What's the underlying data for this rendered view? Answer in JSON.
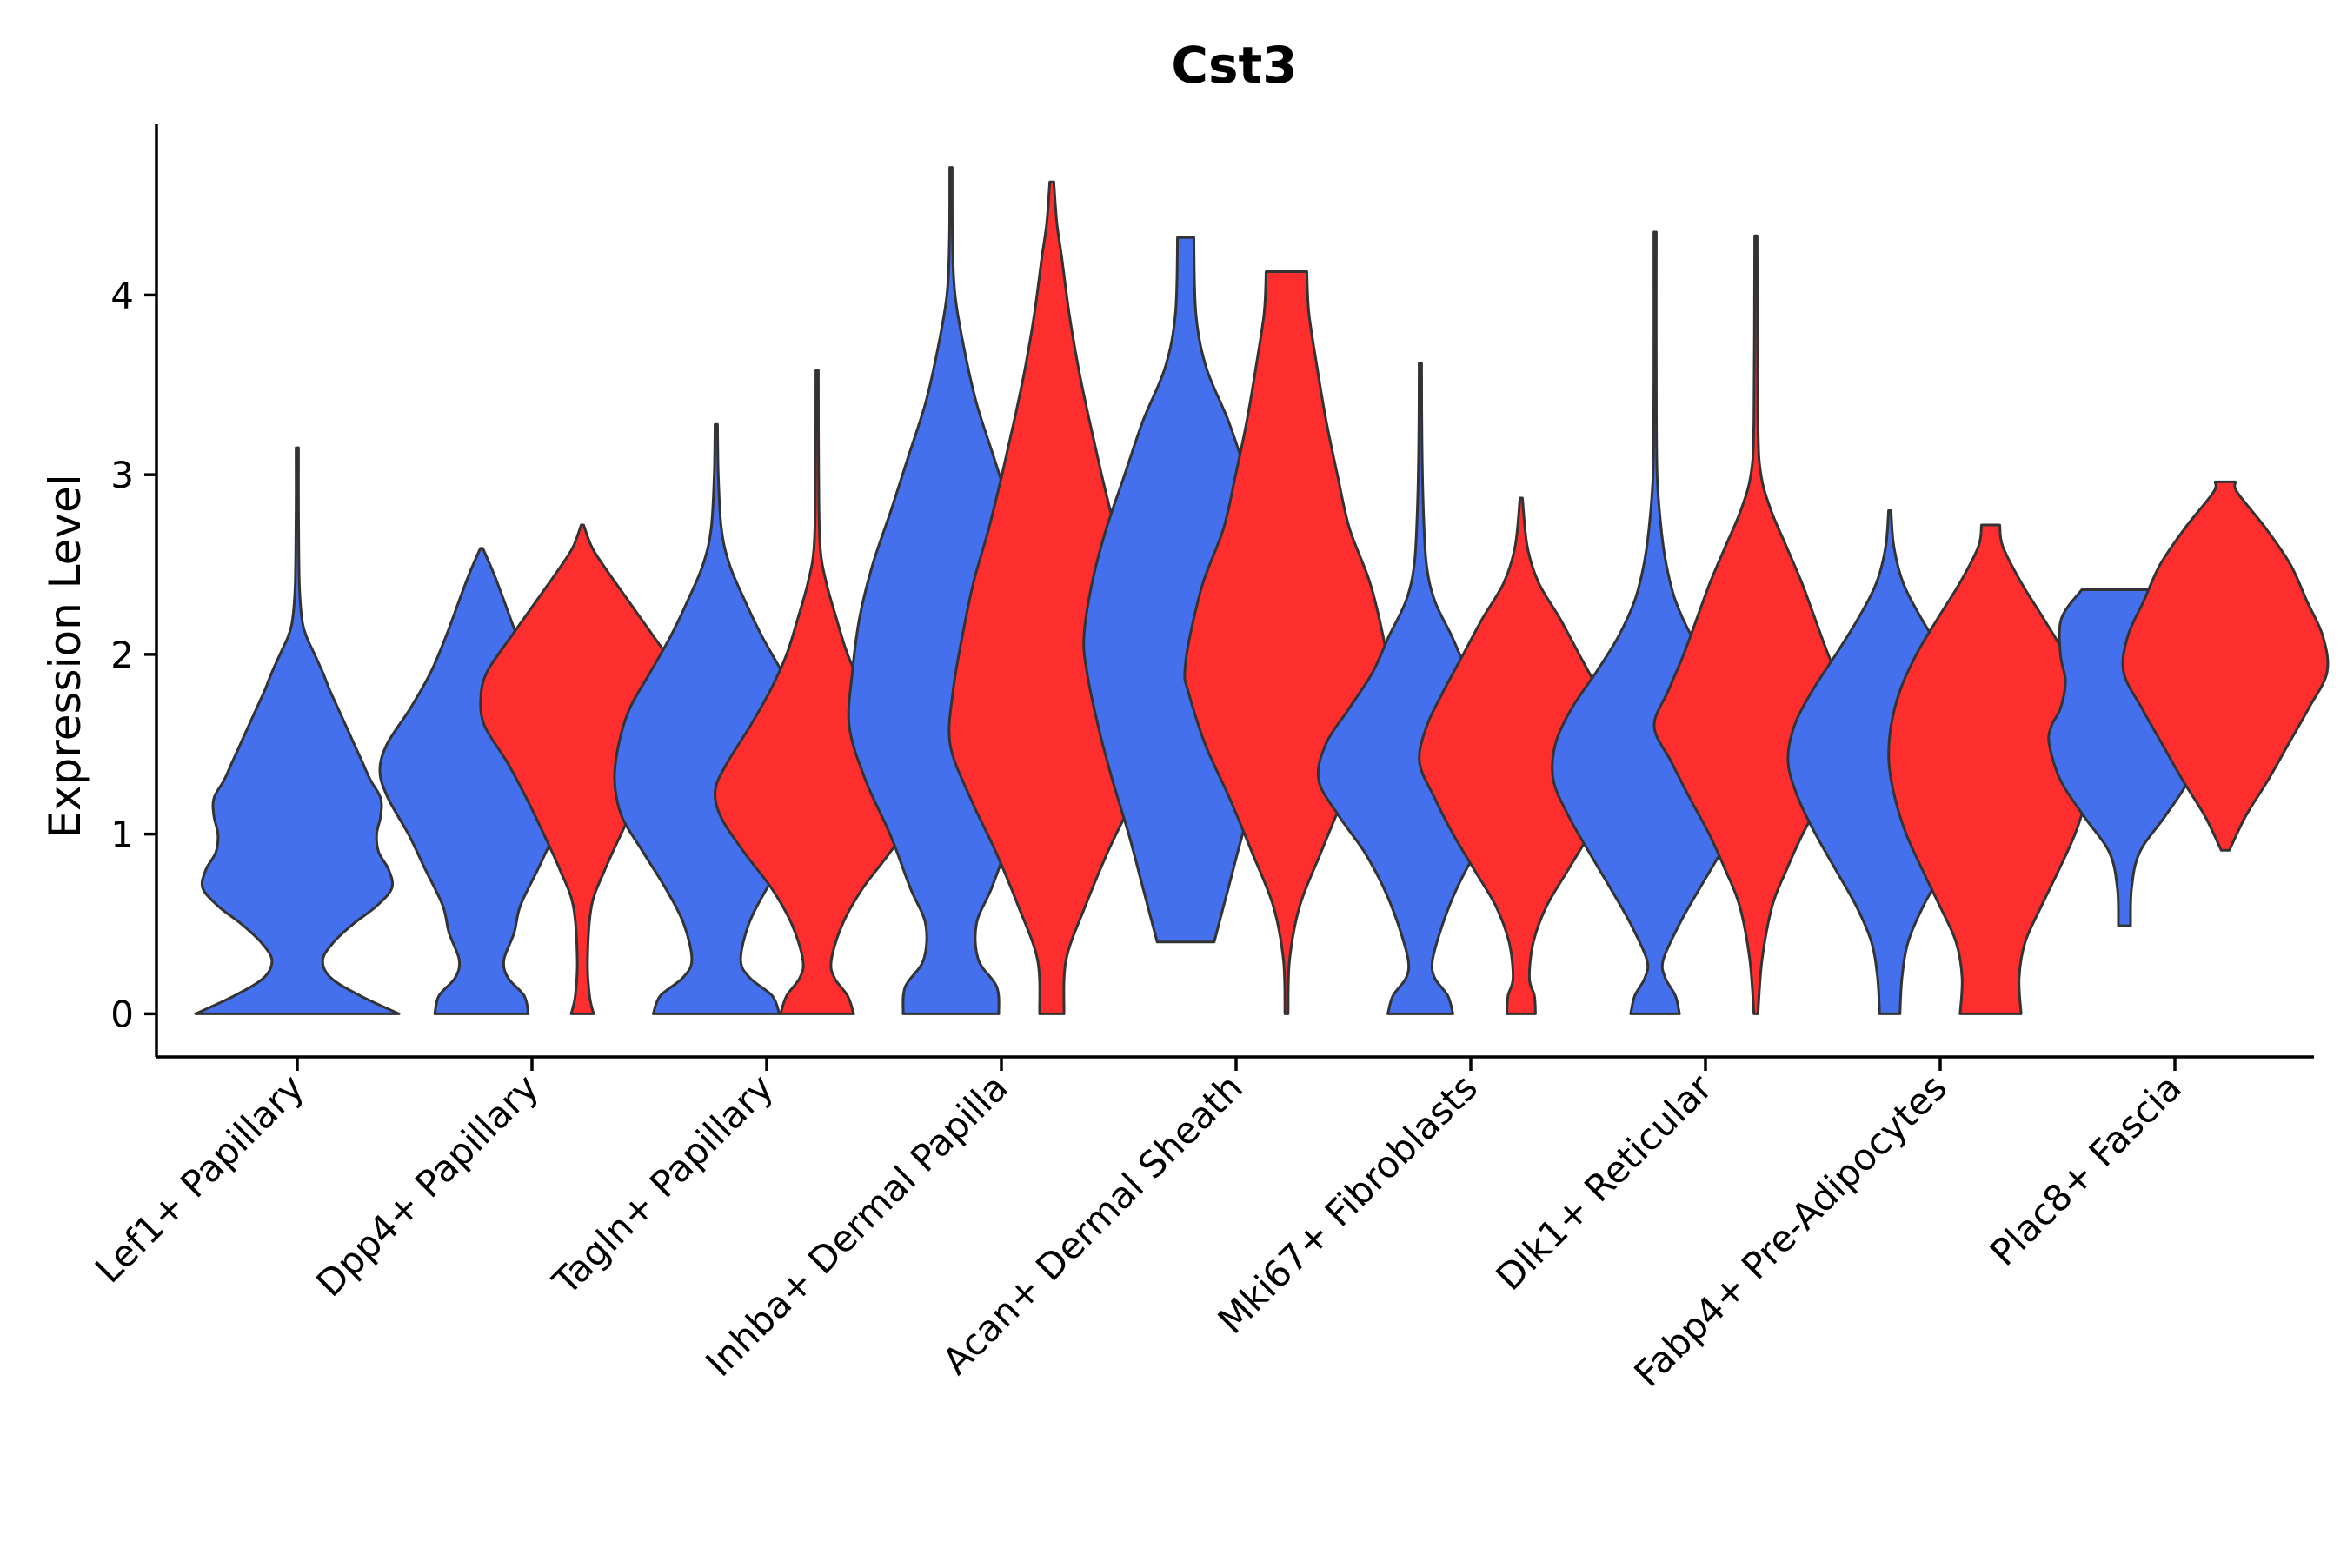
{
  "chart_data": {
    "type": "violin",
    "title": "Cst3",
    "xlabel": "",
    "ylabel": "Expression Level",
    "ylim": [
      -0.24,
      4.95
    ],
    "yticks": [
      0,
      1,
      2,
      3,
      4
    ],
    "grid": false,
    "legend": "none",
    "colors": {
      "blue": "#4470EE",
      "red": "#FF2E2E",
      "outline": "#333333"
    },
    "categories": [
      "Lef1+ Papillary",
      "Dpp4+ Papillary",
      "Tagln+ Papillary",
      "Inhba+ Dermal Papilla",
      "Acan+ Dermal Sheath",
      "Mki67+ Fibroblasts",
      "Dlk1+ Reticular",
      "Fabp4+ Pre-Adipocytes",
      "Plac8+ Fascia"
    ],
    "violins": [
      {
        "category": "Lef1+ Papillary",
        "group": "blue",
        "min": 0,
        "max": 3.15,
        "profile": [
          [
            0,
            1.0
          ],
          [
            0.1,
            0.62
          ],
          [
            0.2,
            0.33
          ],
          [
            0.3,
            0.25
          ],
          [
            0.4,
            0.36
          ],
          [
            0.5,
            0.55
          ],
          [
            0.6,
            0.78
          ],
          [
            0.7,
            0.93
          ],
          [
            0.8,
            0.9
          ],
          [
            0.9,
            0.8
          ],
          [
            1.0,
            0.78
          ],
          [
            1.1,
            0.82
          ],
          [
            1.2,
            0.82
          ],
          [
            1.3,
            0.72
          ],
          [
            1.4,
            0.64
          ],
          [
            1.5,
            0.56
          ],
          [
            1.6,
            0.48
          ],
          [
            1.7,
            0.4
          ],
          [
            1.8,
            0.32
          ],
          [
            1.9,
            0.25
          ],
          [
            2.0,
            0.17
          ],
          [
            2.1,
            0.09
          ],
          [
            2.2,
            0.045
          ],
          [
            2.4,
            0.02
          ],
          [
            2.8,
            0.012
          ],
          [
            3.15,
            0.008
          ]
        ]
      },
      {
        "category": "Dpp4+ Papillary",
        "group": "blue",
        "min": 0,
        "max": 2.59,
        "profile": [
          [
            0,
            0.46
          ],
          [
            0.1,
            0.42
          ],
          [
            0.2,
            0.26
          ],
          [
            0.3,
            0.22
          ],
          [
            0.45,
            0.32
          ],
          [
            0.6,
            0.38
          ],
          [
            0.8,
            0.55
          ],
          [
            1.0,
            0.72
          ],
          [
            1.2,
            0.92
          ],
          [
            1.35,
            1.0
          ],
          [
            1.5,
            0.93
          ],
          [
            1.7,
            0.7
          ],
          [
            1.9,
            0.5
          ],
          [
            2.1,
            0.35
          ],
          [
            2.3,
            0.22
          ],
          [
            2.45,
            0.12
          ],
          [
            2.59,
            0.01
          ]
        ]
      },
      {
        "category": "Dpp4+ Papillary",
        "group": "red",
        "min": 0,
        "max": 2.72,
        "profile": [
          [
            0,
            0.11
          ],
          [
            0.1,
            0.07
          ],
          [
            0.3,
            0.05
          ],
          [
            0.6,
            0.09
          ],
          [
            0.8,
            0.22
          ],
          [
            1.0,
            0.38
          ],
          [
            1.2,
            0.55
          ],
          [
            1.4,
            0.74
          ],
          [
            1.6,
            0.96
          ],
          [
            1.75,
            1.0
          ],
          [
            1.9,
            0.94
          ],
          [
            2.1,
            0.7
          ],
          [
            2.3,
            0.45
          ],
          [
            2.5,
            0.2
          ],
          [
            2.6,
            0.09
          ],
          [
            2.72,
            0.01
          ]
        ]
      },
      {
        "category": "Tagln+ Papillary",
        "group": "blue",
        "min": 0,
        "max": 3.28,
        "profile": [
          [
            0,
            0.62
          ],
          [
            0.1,
            0.55
          ],
          [
            0.2,
            0.33
          ],
          [
            0.3,
            0.24
          ],
          [
            0.5,
            0.32
          ],
          [
            0.7,
            0.5
          ],
          [
            0.9,
            0.72
          ],
          [
            1.1,
            0.93
          ],
          [
            1.3,
            1.0
          ],
          [
            1.5,
            0.96
          ],
          [
            1.7,
            0.85
          ],
          [
            1.9,
            0.65
          ],
          [
            2.1,
            0.45
          ],
          [
            2.3,
            0.28
          ],
          [
            2.5,
            0.13
          ],
          [
            2.7,
            0.05
          ],
          [
            3.0,
            0.02
          ],
          [
            3.28,
            0.01
          ]
        ]
      },
      {
        "category": "Tagln+ Papillary",
        "group": "red",
        "min": 0,
        "max": 3.58,
        "profile": [
          [
            0,
            0.36
          ],
          [
            0.1,
            0.3
          ],
          [
            0.2,
            0.17
          ],
          [
            0.3,
            0.14
          ],
          [
            0.5,
            0.25
          ],
          [
            0.7,
            0.45
          ],
          [
            0.9,
            0.72
          ],
          [
            1.1,
            0.95
          ],
          [
            1.25,
            1.0
          ],
          [
            1.4,
            0.88
          ],
          [
            1.6,
            0.66
          ],
          [
            1.8,
            0.46
          ],
          [
            2.0,
            0.3
          ],
          [
            2.2,
            0.19
          ],
          [
            2.4,
            0.09
          ],
          [
            2.6,
            0.03
          ],
          [
            3.0,
            0.015
          ],
          [
            3.58,
            0.01
          ]
        ]
      },
      {
        "category": "Inhba+ Dermal Papilla",
        "group": "blue",
        "min": 0,
        "max": 4.71,
        "profile": [
          [
            0,
            0.47
          ],
          [
            0.15,
            0.45
          ],
          [
            0.3,
            0.27
          ],
          [
            0.5,
            0.25
          ],
          [
            0.7,
            0.4
          ],
          [
            1.0,
            0.6
          ],
          [
            1.3,
            0.84
          ],
          [
            1.6,
            1.0
          ],
          [
            1.9,
            0.97
          ],
          [
            2.2,
            0.9
          ],
          [
            2.5,
            0.77
          ],
          [
            2.8,
            0.59
          ],
          [
            3.1,
            0.42
          ],
          [
            3.4,
            0.25
          ],
          [
            3.7,
            0.13
          ],
          [
            4.0,
            0.04
          ],
          [
            4.3,
            0.015
          ],
          [
            4.71,
            0.01
          ]
        ]
      },
      {
        "category": "Inhba+ Dermal Papilla",
        "group": "red",
        "min": 0,
        "max": 4.63,
        "profile": [
          [
            0,
            0.12
          ],
          [
            0.3,
            0.14
          ],
          [
            0.6,
            0.33
          ],
          [
            0.9,
            0.55
          ],
          [
            1.2,
            0.8
          ],
          [
            1.5,
            1.0
          ],
          [
            1.8,
            0.97
          ],
          [
            2.1,
            0.88
          ],
          [
            2.4,
            0.77
          ],
          [
            2.7,
            0.62
          ],
          [
            3.0,
            0.49
          ],
          [
            3.3,
            0.37
          ],
          [
            3.6,
            0.26
          ],
          [
            3.9,
            0.17
          ],
          [
            4.2,
            0.1
          ],
          [
            4.4,
            0.05
          ],
          [
            4.63,
            0.02
          ]
        ]
      },
      {
        "category": "Acan+ Dermal Sheath",
        "group": "blue",
        "min": 0.4,
        "max": 4.32,
        "profile": [
          [
            0.4,
            0.28
          ],
          [
            0.7,
            0.42
          ],
          [
            1.0,
            0.56
          ],
          [
            1.3,
            0.72
          ],
          [
            1.6,
            0.86
          ],
          [
            1.9,
            0.97
          ],
          [
            2.1,
            1.0
          ],
          [
            2.4,
            0.92
          ],
          [
            2.7,
            0.78
          ],
          [
            3.0,
            0.6
          ],
          [
            3.3,
            0.42
          ],
          [
            3.6,
            0.2
          ],
          [
            3.9,
            0.1
          ],
          [
            4.32,
            0.08
          ]
        ]
      },
      {
        "category": "Acan+ Dermal Sheath",
        "group": "red",
        "min": 0,
        "max": 4.13,
        "profile": [
          [
            0,
            0.015
          ],
          [
            0.3,
            0.03
          ],
          [
            0.6,
            0.13
          ],
          [
            0.9,
            0.34
          ],
          [
            1.2,
            0.56
          ],
          [
            1.5,
            0.8
          ],
          [
            1.8,
            0.97
          ],
          [
            1.9,
            1.0
          ],
          [
            2.1,
            0.95
          ],
          [
            2.4,
            0.82
          ],
          [
            2.7,
            0.62
          ],
          [
            3.0,
            0.5
          ],
          [
            3.3,
            0.39
          ],
          [
            3.6,
            0.3
          ],
          [
            3.9,
            0.22
          ],
          [
            4.13,
            0.2
          ]
        ]
      },
      {
        "category": "Mki67+ Fibroblasts",
        "group": "blue",
        "min": 0,
        "max": 3.62,
        "profile": [
          [
            0,
            0.32
          ],
          [
            0.1,
            0.27
          ],
          [
            0.2,
            0.14
          ],
          [
            0.3,
            0.12
          ],
          [
            0.5,
            0.22
          ],
          [
            0.7,
            0.36
          ],
          [
            0.9,
            0.55
          ],
          [
            1.1,
            0.8
          ],
          [
            1.3,
            1.0
          ],
          [
            1.5,
            0.93
          ],
          [
            1.7,
            0.7
          ],
          [
            1.9,
            0.47
          ],
          [
            2.1,
            0.31
          ],
          [
            2.3,
            0.14
          ],
          [
            2.5,
            0.06
          ],
          [
            2.8,
            0.03
          ],
          [
            3.2,
            0.015
          ],
          [
            3.62,
            0.01
          ]
        ]
      },
      {
        "category": "Mki67+ Fibroblasts",
        "group": "red",
        "min": 0,
        "max": 2.87,
        "profile": [
          [
            0,
            0.14
          ],
          [
            0.1,
            0.13
          ],
          [
            0.2,
            0.08
          ],
          [
            0.4,
            0.12
          ],
          [
            0.6,
            0.25
          ],
          [
            0.8,
            0.46
          ],
          [
            1.0,
            0.67
          ],
          [
            1.2,
            0.85
          ],
          [
            1.4,
            1.0
          ],
          [
            1.6,
            0.93
          ],
          [
            1.8,
            0.76
          ],
          [
            2.0,
            0.57
          ],
          [
            2.2,
            0.38
          ],
          [
            2.4,
            0.17
          ],
          [
            2.6,
            0.06
          ],
          [
            2.87,
            0.01
          ]
        ]
      },
      {
        "category": "Dlk1+ Reticular",
        "group": "blue",
        "min": 0,
        "max": 4.35,
        "profile": [
          [
            0,
            0.24
          ],
          [
            0.1,
            0.2
          ],
          [
            0.2,
            0.1
          ],
          [
            0.3,
            0.08
          ],
          [
            0.5,
            0.24
          ],
          [
            0.7,
            0.44
          ],
          [
            0.9,
            0.65
          ],
          [
            1.1,
            0.85
          ],
          [
            1.3,
            1.0
          ],
          [
            1.5,
            0.98
          ],
          [
            1.7,
            0.82
          ],
          [
            1.9,
            0.58
          ],
          [
            2.1,
            0.36
          ],
          [
            2.3,
            0.2
          ],
          [
            2.5,
            0.11
          ],
          [
            2.7,
            0.06
          ],
          [
            3.0,
            0.02
          ],
          [
            3.5,
            0.01
          ],
          [
            4.35,
            0.01
          ]
        ]
      },
      {
        "category": "Dlk1+ Reticular",
        "group": "red",
        "min": 0,
        "max": 4.33,
        "profile": [
          [
            0,
            0.02
          ],
          [
            0.3,
            0.06
          ],
          [
            0.6,
            0.16
          ],
          [
            0.8,
            0.3
          ],
          [
            1.0,
            0.46
          ],
          [
            1.2,
            0.65
          ],
          [
            1.4,
            0.83
          ],
          [
            1.6,
            1.0
          ],
          [
            1.8,
            0.86
          ],
          [
            2.0,
            0.71
          ],
          [
            2.2,
            0.58
          ],
          [
            2.4,
            0.45
          ],
          [
            2.6,
            0.3
          ],
          [
            2.8,
            0.15
          ],
          [
            3.0,
            0.05
          ],
          [
            3.3,
            0.02
          ],
          [
            4.33,
            0.01
          ]
        ]
      },
      {
        "category": "Fabp4+ Pre-Adipocytes",
        "group": "blue",
        "min": 0,
        "max": 2.8,
        "profile": [
          [
            0,
            0.1
          ],
          [
            0.2,
            0.12
          ],
          [
            0.4,
            0.18
          ],
          [
            0.6,
            0.33
          ],
          [
            0.8,
            0.53
          ],
          [
            1.0,
            0.73
          ],
          [
            1.2,
            0.9
          ],
          [
            1.4,
            1.0
          ],
          [
            1.6,
            0.94
          ],
          [
            1.8,
            0.76
          ],
          [
            2.0,
            0.53
          ],
          [
            2.2,
            0.31
          ],
          [
            2.4,
            0.13
          ],
          [
            2.6,
            0.04
          ],
          [
            2.8,
            0.01
          ]
        ]
      },
      {
        "category": "Fabp4+ Pre-Adipocytes",
        "group": "red",
        "min": 0,
        "max": 2.72,
        "profile": [
          [
            0,
            0.3
          ],
          [
            0.2,
            0.28
          ],
          [
            0.4,
            0.34
          ],
          [
            0.6,
            0.5
          ],
          [
            0.8,
            0.67
          ],
          [
            1.0,
            0.83
          ],
          [
            1.2,
            0.94
          ],
          [
            1.4,
            1.0
          ],
          [
            1.6,
            0.98
          ],
          [
            1.8,
            0.89
          ],
          [
            2.0,
            0.73
          ],
          [
            2.2,
            0.52
          ],
          [
            2.4,
            0.3
          ],
          [
            2.6,
            0.12
          ],
          [
            2.72,
            0.09
          ]
        ]
      },
      {
        "category": "Plac8+ Fascia",
        "group": "blue",
        "min": 0.49,
        "max": 2.36,
        "profile": [
          [
            0.49,
            0.06
          ],
          [
            0.7,
            0.07
          ],
          [
            0.9,
            0.15
          ],
          [
            1.1,
            0.4
          ],
          [
            1.3,
            0.63
          ],
          [
            1.5,
            0.74
          ],
          [
            1.6,
            0.72
          ],
          [
            1.7,
            0.63
          ],
          [
            1.85,
            0.58
          ],
          [
            2.0,
            0.63
          ],
          [
            2.2,
            0.62
          ],
          [
            2.36,
            0.42
          ]
        ]
      },
      {
        "category": "Plac8+ Fascia",
        "group": "red",
        "min": 0.91,
        "max": 2.96,
        "profile": [
          [
            0.91,
            0.04
          ],
          [
            1.1,
            0.2
          ],
          [
            1.3,
            0.42
          ],
          [
            1.5,
            0.62
          ],
          [
            1.7,
            0.82
          ],
          [
            1.9,
            1.0
          ],
          [
            2.1,
            0.96
          ],
          [
            2.3,
            0.8
          ],
          [
            2.5,
            0.64
          ],
          [
            2.7,
            0.4
          ],
          [
            2.9,
            0.12
          ],
          [
            2.96,
            0.1
          ]
        ]
      }
    ]
  }
}
